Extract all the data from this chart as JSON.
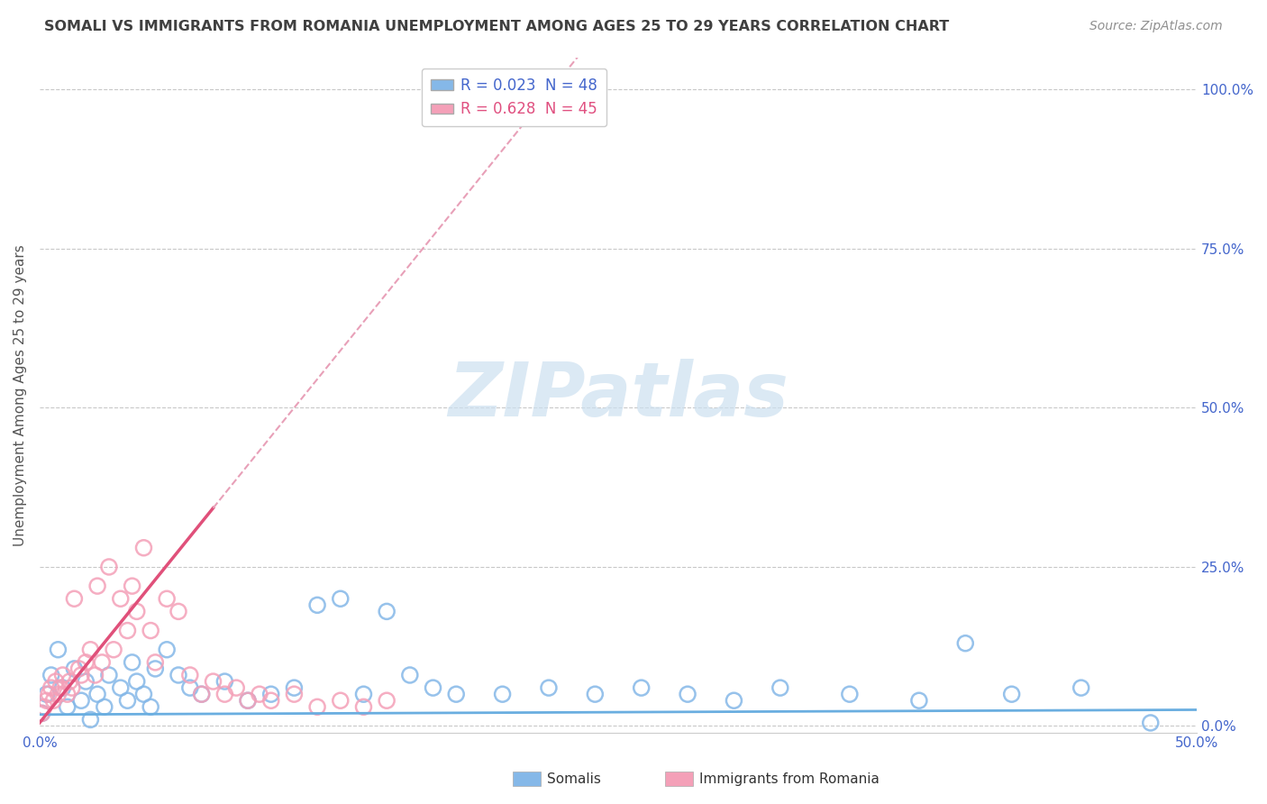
{
  "title": "SOMALI VS IMMIGRANTS FROM ROMANIA UNEMPLOYMENT AMONG AGES 25 TO 29 YEARS CORRELATION CHART",
  "source": "Source: ZipAtlas.com",
  "ylabel": "Unemployment Among Ages 25 to 29 years",
  "ytick_values": [
    0.0,
    0.25,
    0.5,
    0.75,
    1.0
  ],
  "xlim": [
    0.0,
    0.5
  ],
  "ylim": [
    -0.01,
    1.05
  ],
  "legend1_label": "R = 0.023  N = 48",
  "legend2_label": "R = 0.628  N = 45",
  "somali_color": "#85b8e8",
  "romania_color": "#f4a0b8",
  "regression_somali_color": "#6aaee0",
  "regression_romania_solid_color": "#e0507a",
  "regression_romania_dash_color": "#e8a0b8",
  "watermark_color": "#cce0f0",
  "grid_color": "#c8c8c8",
  "title_color": "#404040",
  "source_color": "#909090",
  "tick_color": "#4466cc",
  "ylabel_color": "#555555",
  "somali_x": [
    0.001,
    0.003,
    0.005,
    0.008,
    0.01,
    0.012,
    0.015,
    0.018,
    0.02,
    0.022,
    0.025,
    0.028,
    0.03,
    0.035,
    0.038,
    0.04,
    0.042,
    0.045,
    0.048,
    0.05,
    0.055,
    0.06,
    0.065,
    0.07,
    0.08,
    0.09,
    0.1,
    0.11,
    0.12,
    0.13,
    0.14,
    0.15,
    0.16,
    0.17,
    0.18,
    0.2,
    0.22,
    0.24,
    0.26,
    0.28,
    0.3,
    0.32,
    0.35,
    0.38,
    0.4,
    0.42,
    0.45,
    0.48
  ],
  "somali_y": [
    0.02,
    0.05,
    0.08,
    0.12,
    0.06,
    0.03,
    0.09,
    0.04,
    0.07,
    0.01,
    0.05,
    0.03,
    0.08,
    0.06,
    0.04,
    0.1,
    0.07,
    0.05,
    0.03,
    0.09,
    0.12,
    0.08,
    0.06,
    0.05,
    0.07,
    0.04,
    0.05,
    0.06,
    0.19,
    0.2,
    0.05,
    0.18,
    0.08,
    0.06,
    0.05,
    0.05,
    0.06,
    0.05,
    0.06,
    0.05,
    0.04,
    0.06,
    0.05,
    0.04,
    0.13,
    0.05,
    0.06,
    0.005
  ],
  "romania_x": [
    0.001,
    0.002,
    0.003,
    0.004,
    0.005,
    0.006,
    0.007,
    0.008,
    0.009,
    0.01,
    0.012,
    0.013,
    0.014,
    0.015,
    0.017,
    0.018,
    0.02,
    0.022,
    0.024,
    0.025,
    0.027,
    0.03,
    0.032,
    0.035,
    0.038,
    0.04,
    0.042,
    0.045,
    0.048,
    0.05,
    0.055,
    0.06,
    0.065,
    0.07,
    0.075,
    0.08,
    0.085,
    0.09,
    0.095,
    0.1,
    0.11,
    0.12,
    0.13,
    0.14,
    0.15
  ],
  "romania_y": [
    0.02,
    0.03,
    0.04,
    0.05,
    0.06,
    0.04,
    0.07,
    0.05,
    0.06,
    0.08,
    0.05,
    0.07,
    0.06,
    0.2,
    0.09,
    0.08,
    0.1,
    0.12,
    0.08,
    0.22,
    0.1,
    0.25,
    0.12,
    0.2,
    0.15,
    0.22,
    0.18,
    0.28,
    0.15,
    0.1,
    0.2,
    0.18,
    0.08,
    0.05,
    0.07,
    0.05,
    0.06,
    0.04,
    0.05,
    0.04,
    0.05,
    0.03,
    0.04,
    0.03,
    0.04
  ],
  "romania_line_x0": 0.0,
  "romania_line_x1": 0.075,
  "romania_line_x2": 0.28,
  "somali_line_x0": 0.0,
  "somali_line_x1": 0.5
}
